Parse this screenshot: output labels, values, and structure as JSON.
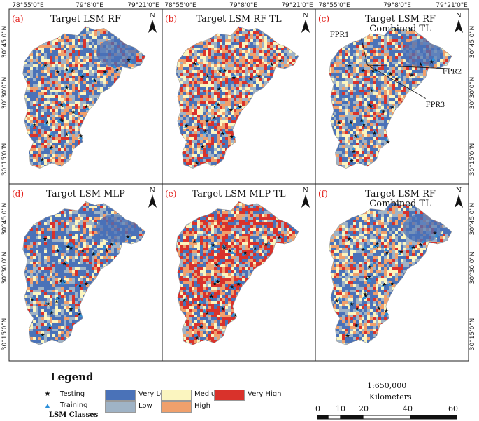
{
  "panels": [
    {
      "label": "(a)",
      "title_lines": [
        "Target LSM RF"
      ],
      "variant": "rf"
    },
    {
      "label": "(b)",
      "title_lines": [
        "Target LSM RF TL"
      ],
      "variant": "rftl"
    },
    {
      "label": "(c)",
      "title_lines": [
        "Target LSM RF",
        "Combined TL"
      ],
      "variant": "rf"
    },
    {
      "label": "(d)",
      "title_lines": [
        "Target LSM MLP"
      ],
      "variant": "mlp"
    },
    {
      "label": "(e)",
      "title_lines": [
        "Target LSM MLP TL"
      ],
      "variant": "mlptl"
    },
    {
      "label": "(f)",
      "title_lines": [
        "Target LSM RF",
        "Combined TL"
      ],
      "variant": "rf"
    }
  ],
  "north_label": "N",
  "lon_ticks": [
    "78°55'0\"E",
    "79°8'0\"E",
    "79°21'0\"E"
  ],
  "lat_ticks": [
    "30°45'0\"N",
    "30°30'0\"N",
    "30°15'0\"N"
  ],
  "fpr_labels": [
    "FPR1",
    "FPR2",
    "FPR3"
  ],
  "legend": {
    "title": "Legend",
    "subtitle": "LSM Classes",
    "points": [
      {
        "label": "Testing",
        "symbol": "★",
        "color": "#111111"
      },
      {
        "label": "Training",
        "symbol": "▲",
        "color": "#2d8fd9"
      }
    ],
    "classes": [
      {
        "label": "Very Low",
        "color": "#4a72b8"
      },
      {
        "label": "Low",
        "color": "#9fb3c6"
      },
      {
        "label": "Medium",
        "color": "#fbf5bf"
      },
      {
        "label": "High",
        "color": "#f0a06c"
      },
      {
        "label": "Very High",
        "color": "#d9322b"
      }
    ]
  },
  "scale": {
    "ratio": "1:650,000",
    "units": "Kilometers",
    "ticks": [
      "0",
      "10",
      "20",
      "40",
      "60"
    ],
    "tick_values": [
      0,
      10,
      20,
      40,
      60
    ]
  }
}
